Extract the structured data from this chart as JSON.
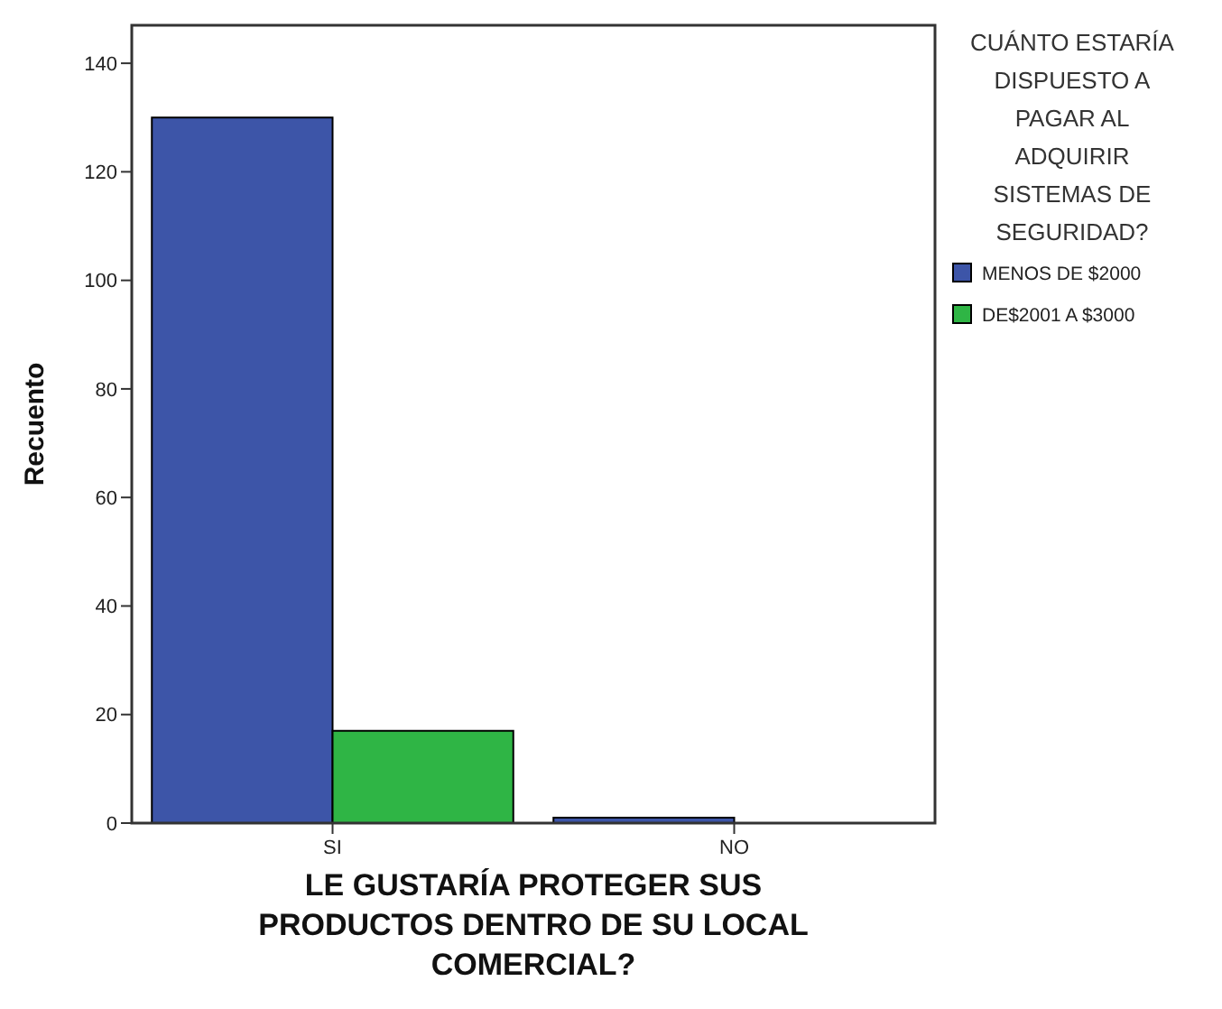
{
  "chart_data": {
    "type": "bar",
    "xlabel": "LE GUSTARÍA PROTEGER SUS PRODUCTOS DENTRO DE SU LOCAL COMERCIAL?",
    "ylabel": "Recuento",
    "legend_title": "CUÁNTO ESTARÍA DISPUESTO A PAGAR AL ADQUIRIR SISTEMAS DE SEGURIDAD?",
    "categories": [
      "SI",
      "NO"
    ],
    "series": [
      {
        "name": "MENOS DE $2000",
        "color": "#3d55a8",
        "values": [
          130,
          1
        ]
      },
      {
        "name": "DE$2001 A $3000",
        "color": "#2fb545",
        "values": [
          17,
          0
        ]
      }
    ],
    "ylim": [
      0,
      147
    ],
    "yticks": [
      0,
      20,
      40,
      60,
      80,
      100,
      120,
      140
    ],
    "grid": false,
    "legend": "right"
  }
}
